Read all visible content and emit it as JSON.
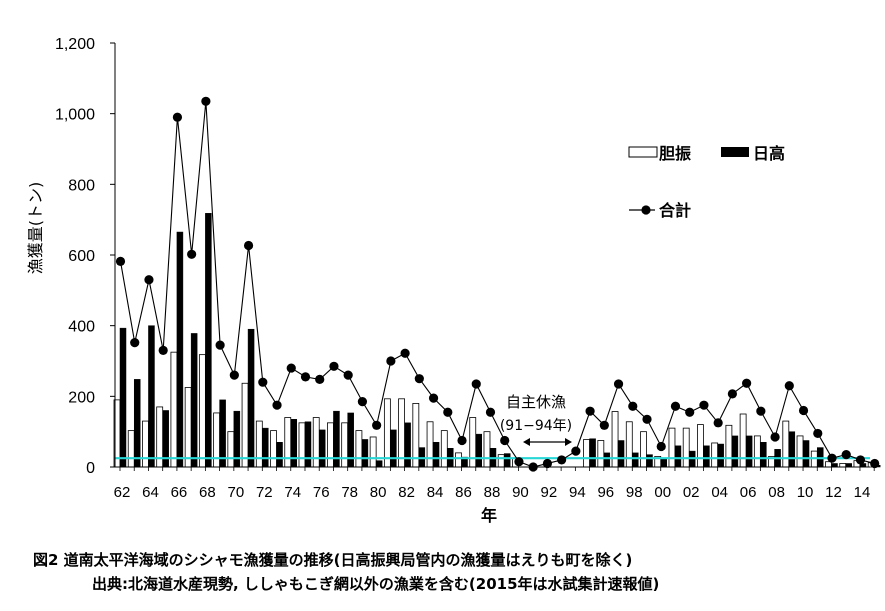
{
  "chart_data": {
    "type": "bar",
    "ylabel": "漁獲量(トン)",
    "xlabel": "年",
    "ylim": [
      0,
      1200
    ],
    "yticks": [
      "0",
      "200",
      "400",
      "600",
      "800",
      "1,000",
      "1,200"
    ],
    "yticks_values": [
      0,
      200,
      400,
      600,
      800,
      1000,
      1200
    ],
    "x": [
      "62",
      "63",
      "64",
      "65",
      "66",
      "67",
      "68",
      "69",
      "70",
      "71",
      "72",
      "73",
      "74",
      "75",
      "76",
      "77",
      "78",
      "79",
      "80",
      "81",
      "82",
      "83",
      "84",
      "85",
      "86",
      "87",
      "88",
      "89",
      "90",
      "91",
      "92",
      "93",
      "94",
      "95",
      "96",
      "97",
      "98",
      "99",
      "00",
      "01",
      "02",
      "03",
      "04",
      "05",
      "06",
      "07",
      "08",
      "09",
      "10",
      "11",
      "12",
      "13",
      "14",
      "15"
    ],
    "xtick_labels": [
      "62",
      "64",
      "66",
      "68",
      "70",
      "72",
      "74",
      "76",
      "78",
      "80",
      "82",
      "84",
      "86",
      "88",
      "90",
      "92",
      "94",
      "96",
      "98",
      "00",
      "02",
      "04",
      "06",
      "08",
      "10",
      "12",
      "14"
    ],
    "series": [
      {
        "name": "胆振",
        "type": "bar",
        "color": "#ffffff",
        "values": [
          190,
          103,
          130,
          170,
          325,
          225,
          318,
          153,
          100,
          237,
          130,
          103,
          140,
          125,
          140,
          125,
          125,
          103,
          85,
          193,
          193,
          180,
          128,
          103,
          40,
          140,
          100,
          35,
          25,
          0,
          0,
          0,
          0,
          78,
          75,
          157,
          128,
          100,
          30,
          110,
          110,
          120,
          68,
          118,
          150,
          88,
          30,
          130,
          88,
          45,
          15,
          10,
          18,
          12
        ]
      },
      {
        "name": "日高",
        "type": "bar",
        "color": "#000000",
        "values": [
          393,
          248,
          400,
          160,
          665,
          378,
          718,
          190,
          158,
          390,
          110,
          70,
          135,
          128,
          105,
          158,
          153,
          78,
          18,
          105,
          125,
          55,
          70,
          53,
          28,
          93,
          53,
          38,
          0,
          0,
          0,
          0,
          0,
          80,
          40,
          75,
          40,
          35,
          25,
          60,
          45,
          60,
          65,
          88,
          88,
          70,
          50,
          100,
          75,
          55,
          10,
          10,
          10,
          5
        ]
      },
      {
        "name": "合計",
        "type": "line",
        "color": "#000000",
        "values": [
          582,
          352,
          530,
          330,
          990,
          602,
          1035,
          345,
          260,
          627,
          240,
          175,
          280,
          255,
          248,
          285,
          260,
          185,
          118,
          300,
          322,
          250,
          195,
          155,
          75,
          235,
          155,
          75,
          15,
          0,
          10,
          20,
          45,
          158,
          118,
          235,
          172,
          135,
          58,
          172,
          155,
          175,
          125,
          207,
          237,
          158,
          85,
          230,
          160,
          95,
          25,
          35,
          20,
          10
        ]
      }
    ],
    "reference_line": {
      "value": 25,
      "color": "#27d6d6"
    },
    "annotations": [
      {
        "text": "自主休漁"
      },
      {
        "text": "(91−94年)"
      }
    ],
    "legend": {
      "placement": "top-right"
    }
  },
  "caption": {
    "line1": "図2  道南太平洋海域のシシャモ漁獲量の推移(日高振興局管内の漁獲量はえりも町を除く)",
    "line2": "出典:北海道水産現勢, ししゃもこぎ網以外の漁業を含む(2015年は水試集計速報値)"
  }
}
